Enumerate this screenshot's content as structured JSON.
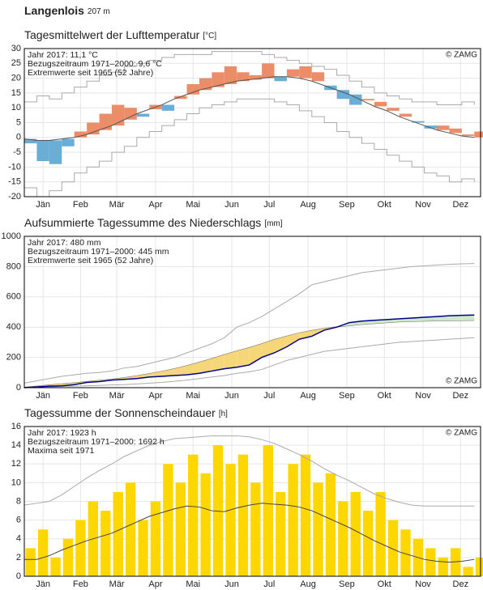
{
  "header": {
    "station": "Langenlois",
    "elevation": "207 m"
  },
  "chart_data": [
    {
      "type": "line",
      "title": "Tagesmittelwert der Lufttemperatur",
      "unit": "[°C]",
      "annotations": [
        {
          "text": "Jahr 2017: 11,1 °C",
          "color": "#222222"
        },
        {
          "text": "Bezugszeitraum 1971–2000: 9,6 °C",
          "color": "#888888"
        },
        {
          "text": "Extremwerte seit 1965 (52 Jahre)",
          "color": "#c8c8c8"
        }
      ],
      "credit": "© ZAMG",
      "credit_corner": "top-right",
      "x": [
        1,
        11,
        21,
        31,
        41,
        51,
        61,
        71,
        81,
        91,
        101,
        111,
        121,
        131,
        141,
        151,
        161,
        171,
        181,
        191,
        201,
        211,
        221,
        231,
        241,
        251,
        261,
        271,
        281,
        291,
        301,
        311,
        321,
        331,
        341,
        351,
        361
      ],
      "xlim": [
        1,
        366
      ],
      "xticks": [
        {
          "value": 16,
          "label": "Jän"
        },
        {
          "value": 46,
          "label": "Feb"
        },
        {
          "value": 75,
          "label": "Mär"
        },
        {
          "value": 106,
          "label": "Apr"
        },
        {
          "value": 136,
          "label": "Mai"
        },
        {
          "value": 167,
          "label": "Jun"
        },
        {
          "value": 197,
          "label": "Jul"
        },
        {
          "value": 228,
          "label": "Aug"
        },
        {
          "value": 259,
          "label": "Sep"
        },
        {
          "value": 289,
          "label": "Okt"
        },
        {
          "value": 320,
          "label": "Nov"
        },
        {
          "value": 350,
          "label": "Dez"
        }
      ],
      "ylim": [
        -20,
        30
      ],
      "yticks": [
        -20,
        -15,
        -10,
        -5,
        0,
        5,
        10,
        15,
        20,
        25,
        30
      ],
      "grid": true,
      "series": [
        {
          "kind": "deviation",
          "baseline": 1,
          "color_above": "#ec8d6a",
          "color_below": "#6aaed6",
          "values": [
            -2,
            -8,
            -9,
            -3,
            2,
            5,
            8,
            11,
            10,
            7,
            11,
            9,
            14,
            18,
            20,
            22,
            24,
            22,
            21,
            25,
            19,
            23,
            24,
            22,
            16,
            13,
            11,
            13,
            12,
            10,
            8,
            5,
            3,
            4,
            3,
            1,
            2
          ]
        },
        {
          "kind": "line",
          "color": "#555555",
          "values": [
            -0.5,
            -1,
            -1,
            -0.5,
            0,
            1,
            2.5,
            4,
            6,
            8,
            9.5,
            11,
            13,
            14.5,
            16,
            17,
            18,
            19,
            19.5,
            20,
            20.5,
            20.5,
            20,
            19,
            17.5,
            16,
            14.5,
            12.5,
            10.5,
            9,
            7,
            5.5,
            4,
            2.5,
            1.5,
            0.5,
            0
          ]
        },
        {
          "kind": "step",
          "color": "#aaaaaa",
          "values": [
            12,
            14,
            13,
            15,
            17,
            19,
            21,
            22,
            24,
            25,
            26,
            27,
            28,
            28,
            28,
            29,
            29,
            29,
            29,
            28,
            27,
            26,
            25,
            24,
            23,
            21,
            19,
            17,
            15,
            14,
            13,
            12,
            12,
            11,
            11,
            12,
            11
          ]
        },
        {
          "kind": "step",
          "color": "#aaaaaa",
          "values": [
            -17,
            -20,
            -18,
            -15,
            -12,
            -10,
            -8,
            -5,
            -3,
            0,
            2,
            4,
            6,
            8,
            10,
            11,
            12,
            13,
            13,
            13,
            12,
            11,
            9,
            7,
            5,
            2,
            0,
            -2,
            -4,
            -6,
            -8,
            -10,
            -12,
            -13,
            -15,
            -14,
            -15
          ]
        }
      ]
    },
    {
      "type": "area",
      "title": "Aufsummierte Tagessumme des Niederschlags",
      "unit": "[mm]",
      "annotations": [
        {
          "text": "Jahr 2017: 480 mm",
          "color": "#222222"
        },
        {
          "text": "Bezugszeitraum 1971–2000: 445 mm",
          "color": "#888888"
        },
        {
          "text": "Extremwerte seit 1965 (52 Jahre)",
          "color": "#c8c8c8"
        }
      ],
      "credit": "© ZAMG",
      "credit_corner": "bottom-right",
      "x": [
        1,
        11,
        21,
        31,
        41,
        51,
        61,
        71,
        81,
        91,
        101,
        111,
        121,
        131,
        141,
        151,
        161,
        171,
        181,
        191,
        201,
        211,
        221,
        231,
        241,
        251,
        261,
        271,
        281,
        291,
        301,
        311,
        321,
        331,
        341,
        351,
        361
      ],
      "xlim": [
        1,
        366
      ],
      "xticks": [
        {
          "value": 16,
          "label": "Jän"
        },
        {
          "value": 46,
          "label": "Feb"
        },
        {
          "value": 75,
          "label": "Mär"
        },
        {
          "value": 106,
          "label": "Apr"
        },
        {
          "value": 136,
          "label": "Mai"
        },
        {
          "value": 167,
          "label": "Jun"
        },
        {
          "value": 197,
          "label": "Jul"
        },
        {
          "value": 228,
          "label": "Aug"
        },
        {
          "value": 259,
          "label": "Sep"
        },
        {
          "value": 289,
          "label": "Okt"
        },
        {
          "value": 320,
          "label": "Nov"
        },
        {
          "value": 350,
          "label": "Dez"
        }
      ],
      "ylim": [
        0,
        1000
      ],
      "yticks": [
        0,
        200,
        400,
        600,
        800,
        1000
      ],
      "grid": true,
      "series": [
        {
          "kind": "line",
          "color": "#aaaaaa",
          "values": [
            30,
            45,
            60,
            75,
            85,
            95,
            100,
            110,
            130,
            140,
            160,
            180,
            200,
            230,
            260,
            290,
            330,
            400,
            430,
            470,
            520,
            570,
            620,
            680,
            700,
            720,
            740,
            760,
            770,
            780,
            790,
            800,
            805,
            810,
            815,
            818,
            820
          ]
        },
        {
          "kind": "line",
          "color": "#aaaaaa",
          "values": [
            0,
            2,
            5,
            8,
            10,
            12,
            15,
            18,
            20,
            25,
            30,
            35,
            42,
            50,
            60,
            70,
            80,
            95,
            105,
            120,
            150,
            180,
            200,
            220,
            240,
            250,
            260,
            270,
            280,
            290,
            300,
            305,
            310,
            315,
            320,
            325,
            330
          ]
        },
        {
          "kind": "line",
          "color": "#666666",
          "values": [
            2,
            10,
            18,
            25,
            32,
            40,
            48,
            56,
            66,
            78,
            92,
            108,
            125,
            145,
            168,
            192,
            218,
            242,
            265,
            290,
            318,
            340,
            362,
            378,
            392,
            402,
            410,
            418,
            424,
            430,
            435,
            438,
            440,
            442,
            443,
            444,
            445
          ]
        },
        {
          "kind": "line",
          "color": "#00008b",
          "fill_against": 2,
          "color_above": "#cfe8c8",
          "color_below": "#f5d77a",
          "values": [
            0,
            5,
            10,
            12,
            20,
            35,
            40,
            50,
            55,
            60,
            70,
            75,
            80,
            85,
            95,
            110,
            125,
            135,
            150,
            200,
            230,
            270,
            320,
            340,
            380,
            400,
            430,
            440,
            445,
            450,
            455,
            460,
            465,
            470,
            475,
            478,
            480
          ]
        }
      ]
    },
    {
      "type": "bar",
      "title": "Tagessumme der Sonnenscheindauer",
      "unit": "[h]",
      "annotations": [
        {
          "text": "Jahr 2017: 1923 h",
          "color": "#222222"
        },
        {
          "text": "Bezugszeitraum 1971–2000: 1692 h",
          "color": "#888888"
        },
        {
          "text": "Maxima seit 1971",
          "color": "#c8c8c8"
        }
      ],
      "credit": "© ZAMG",
      "credit_corner": "top-right",
      "x": [
        1,
        11,
        21,
        31,
        41,
        51,
        61,
        71,
        81,
        91,
        101,
        111,
        121,
        131,
        141,
        151,
        161,
        171,
        181,
        191,
        201,
        211,
        221,
        231,
        241,
        251,
        261,
        271,
        281,
        291,
        301,
        311,
        321,
        331,
        341,
        351,
        361
      ],
      "xlim": [
        1,
        366
      ],
      "xticks": [
        {
          "value": 16,
          "label": "Jän"
        },
        {
          "value": 46,
          "label": "Feb"
        },
        {
          "value": 75,
          "label": "Mär"
        },
        {
          "value": 106,
          "label": "Apr"
        },
        {
          "value": 136,
          "label": "Mai"
        },
        {
          "value": 167,
          "label": "Jun"
        },
        {
          "value": 197,
          "label": "Jul"
        },
        {
          "value": 228,
          "label": "Aug"
        },
        {
          "value": 259,
          "label": "Sep"
        },
        {
          "value": 289,
          "label": "Okt"
        },
        {
          "value": 320,
          "label": "Nov"
        },
        {
          "value": 350,
          "label": "Dez"
        }
      ],
      "ylim": [
        0,
        16
      ],
      "yticks": [
        0,
        2,
        4,
        6,
        8,
        10,
        12,
        14,
        16
      ],
      "grid": true,
      "series": [
        {
          "kind": "bar",
          "color": "#ffd700",
          "values": [
            3,
            5,
            2,
            4,
            6,
            8,
            7,
            9,
            10,
            6,
            8,
            12,
            10,
            13,
            11,
            14,
            12,
            13,
            10,
            14,
            9,
            12,
            13,
            10,
            11,
            8,
            9,
            7,
            9,
            6,
            5,
            4,
            3,
            2,
            3,
            1,
            2
          ]
        },
        {
          "kind": "line",
          "color": "#aaaaaa",
          "values": [
            7.6,
            7.8,
            8,
            8.7,
            9.6,
            10.5,
            11.3,
            12,
            12.8,
            13.4,
            14,
            14.4,
            14.7,
            14.8,
            14.9,
            15,
            15,
            15,
            14.9,
            14.6,
            14.2,
            13.6,
            13,
            12.3,
            11.5,
            10.8,
            10.2,
            9.5,
            8.8,
            8.3,
            7.9,
            7.6,
            7.5,
            7.5,
            7.5,
            7.5,
            7.5
          ]
        },
        {
          "kind": "line",
          "color": "#444444",
          "values": [
            1.8,
            1.8,
            2.2,
            2.8,
            3.3,
            3.8,
            4.2,
            4.6,
            5.2,
            5.8,
            6.4,
            6.8,
            7.2,
            7.5,
            7.4,
            7,
            6.9,
            7.3,
            7.6,
            7.8,
            7.7,
            7.6,
            7.4,
            7,
            6.4,
            5.8,
            5.2,
            4.5,
            3.8,
            3.2,
            2.6,
            2.2,
            1.8,
            1.6,
            1.5,
            1.6,
            1.8
          ]
        }
      ]
    }
  ]
}
